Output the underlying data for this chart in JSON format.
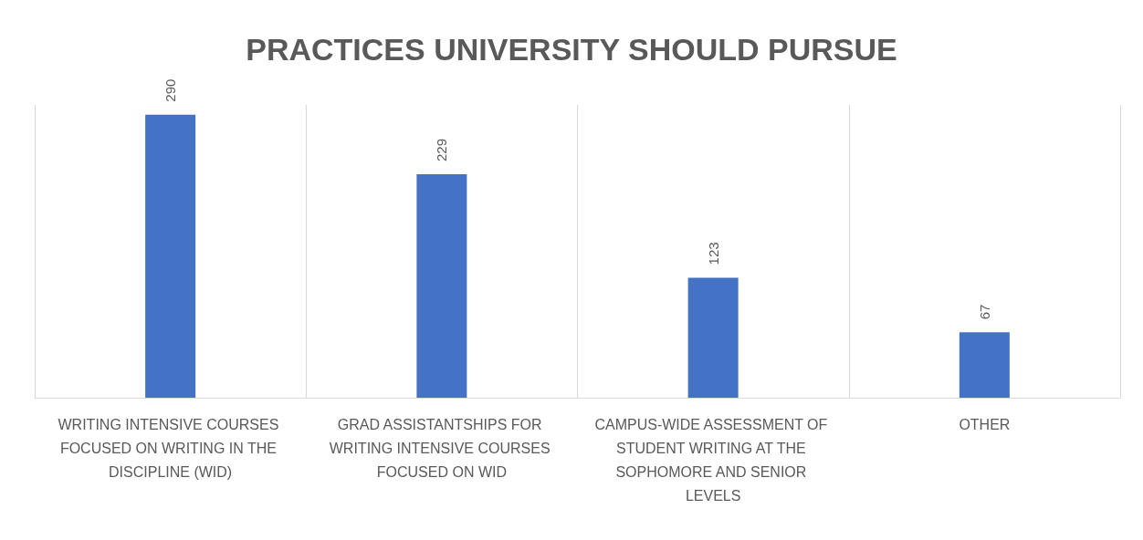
{
  "chart_data": {
    "type": "bar",
    "title": "PRACTICES UNIVERSITY SHOULD PURSUE",
    "categories": [
      "WRITING INTENSIVE COURSES FOCUSED ON WRITING IN THE DISCIPLINE (WID)",
      "GRAD ASSISTANTSHIPS FOR WRITING INTENSIVE COURSES FOCUSED ON WID",
      "CAMPUS-WIDE ASSESSMENT OF STUDENT WRITING AT THE SOPHOMORE AND SENIOR LEVELS",
      "OTHER"
    ],
    "values": [
      290,
      229,
      123,
      67
    ],
    "color": "#4472c4",
    "data_labels": true,
    "grid": "x"
  }
}
